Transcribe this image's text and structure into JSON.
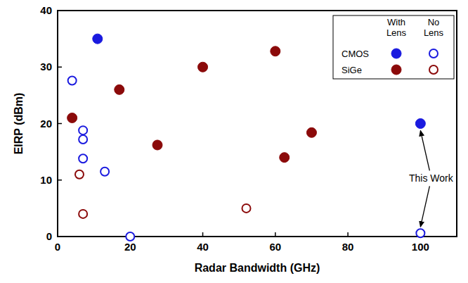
{
  "chart_data": {
    "type": "scatter",
    "x_label": "Radar Bandwidth (GHz)",
    "y_label": "EIRP (dBm)",
    "xlim": [
      0,
      110
    ],
    "ylim": [
      0,
      40
    ],
    "xticks": [
      0,
      20,
      40,
      60,
      80,
      100
    ],
    "yticks": [
      0,
      10,
      20,
      30,
      40
    ],
    "legend": "upper right",
    "legend_columns": [
      "With Lens",
      "No Lens"
    ],
    "annotation": "This Work",
    "series": [
      {
        "name": "CMOS",
        "color": "#1a1adf",
        "marker": "filled",
        "x": [
          11,
          100
        ],
        "values": [
          35,
          20
        ]
      },
      {
        "name": "CMOS",
        "color": "#1a1adf",
        "marker": "open",
        "x": [
          4,
          7,
          7,
          7,
          13,
          20,
          100
        ],
        "values": [
          27.6,
          18.8,
          17.2,
          13.8,
          11.5,
          0,
          0.6
        ]
      },
      {
        "name": "SiGe",
        "color": "#8b0a0a",
        "marker": "filled",
        "x": [
          4,
          17,
          27.5,
          40,
          60,
          62.5,
          70
        ],
        "values": [
          21,
          26,
          16.2,
          30,
          32.8,
          14,
          18.4
        ]
      },
      {
        "name": "SiGe",
        "color": "#8b0a0a",
        "marker": "open",
        "x": [
          6,
          7,
          52
        ],
        "values": [
          11,
          4,
          5
        ]
      }
    ]
  }
}
